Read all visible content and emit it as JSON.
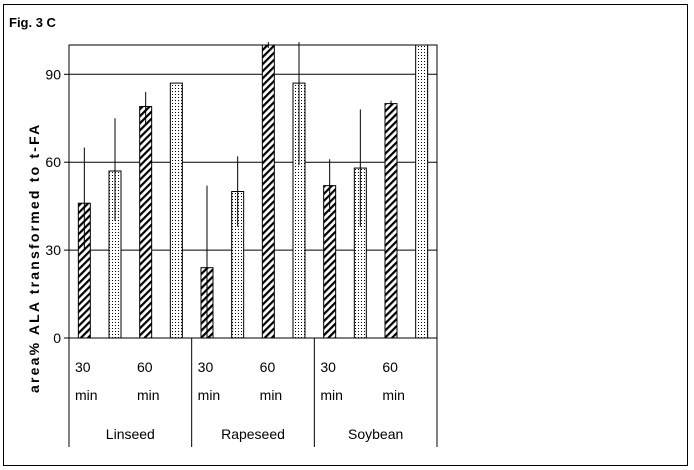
{
  "figure_label": "Fig. 3 C",
  "chart_data": {
    "type": "bar",
    "title": "",
    "ylabel": "area% ALA transformed to t-FA",
    "xlabel": "",
    "ylim": [
      0,
      100
    ],
    "yticks": [
      0,
      30,
      60,
      90
    ],
    "grid": true,
    "legend": "none",
    "groups": [
      {
        "name": "Linseed",
        "time_labels": [
          {
            "value": "30",
            "unit": "min"
          },
          {
            "value": "60",
            "unit": "min"
          }
        ],
        "bars": [
          {
            "pattern": "hatch",
            "value": 46,
            "error_high": 65,
            "error_low": 30
          },
          {
            "pattern": "dots",
            "value": 57,
            "error_high": 75,
            "error_low": 40
          },
          {
            "pattern": "hatch",
            "value": 79,
            "error_high": 84,
            "error_low": 73
          },
          {
            "pattern": "dots",
            "value": 87,
            "error_high": 87,
            "error_low": 87
          }
        ]
      },
      {
        "name": "Rapeseed",
        "time_labels": [
          {
            "value": "30",
            "unit": "min"
          },
          {
            "value": "60",
            "unit": "min"
          }
        ],
        "bars": [
          {
            "pattern": "hatch",
            "value": 24,
            "error_high": 52,
            "error_low": 0
          },
          {
            "pattern": "dots",
            "value": 50,
            "error_high": 62,
            "error_low": 38
          },
          {
            "pattern": "hatch",
            "value": 100,
            "error_high": 101,
            "error_low": 99
          },
          {
            "pattern": "dots",
            "value": 87,
            "error_high": 101,
            "error_low": 59
          }
        ]
      },
      {
        "name": "Soybean",
        "time_labels": [
          {
            "value": "30",
            "unit": "min"
          },
          {
            "value": "60",
            "unit": "min"
          }
        ],
        "bars": [
          {
            "pattern": "hatch",
            "value": 52,
            "error_high": 61,
            "error_low": 43
          },
          {
            "pattern": "dots",
            "value": 58,
            "error_high": 78,
            "error_low": 38
          },
          {
            "pattern": "hatch",
            "value": 80,
            "error_high": 81,
            "error_low": 79
          },
          {
            "pattern": "dots",
            "value": 100,
            "error_high": 100,
            "error_low": 100
          }
        ]
      }
    ]
  }
}
